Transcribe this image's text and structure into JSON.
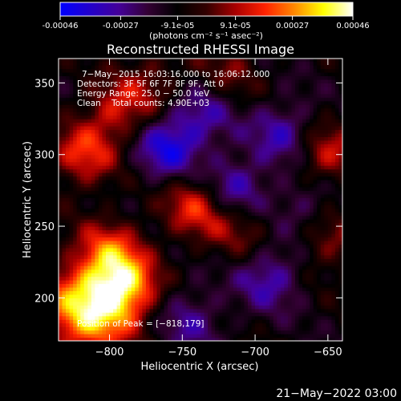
{
  "colorbar": {
    "tick_labels": [
      "-0.00046",
      "-0.00027",
      "-9.1e-05",
      "9.1e-05",
      "0.00027",
      "0.00046"
    ],
    "tick_values": [
      -0.00046,
      -0.00027,
      -9.1e-05,
      9.1e-05,
      0.00027,
      0.00046
    ],
    "range": [
      -0.00046,
      0.00046
    ],
    "units_label": "(photons cm⁻² s⁻¹ asec⁻²)",
    "colormap": [
      "#0000ff",
      "#2200cc",
      "#440099",
      "#330033",
      "#000000",
      "#330000",
      "#aa0000",
      "#ff2200",
      "#ff8800",
      "#ffff00",
      "#ffffff"
    ]
  },
  "chart_data": {
    "type": "heatmap",
    "title": "Reconstructed RHESSI Image",
    "xlabel": "Heliocentric X (arcsec)",
    "ylabel": "Heliocentric Y (arcsec)",
    "xlim": [
      -835,
      -640
    ],
    "ylim": [
      170,
      367
    ],
    "x_ticks": [
      -800,
      -750,
      -700,
      -650
    ],
    "x_tick_labels": [
      "−800",
      "−750",
      "−700",
      "−650"
    ],
    "y_ticks": [
      200,
      250,
      300,
      350
    ],
    "y_tick_labels": [
      "200",
      "250",
      "300",
      "350"
    ],
    "annotations": [
      "7−May−2015 16:03:16.000 to 16:06:12.000",
      "Detectors: 3F 5F 6F 7F 8F 9F, Att 0",
      "Energy Range: 25.0 − 50.0 keV",
      "Clean    Total counts: 4.90E+03"
    ],
    "peak_label": "Position of Peak = [−818,179]",
    "peak": [
      -818,
      179
    ],
    "bright_regions": [
      {
        "x": -815,
        "y": 192,
        "intensity": 1.0
      },
      {
        "x": -790,
        "y": 208,
        "intensity": 0.75
      },
      {
        "x": -800,
        "y": 232,
        "intensity": 0.55
      },
      {
        "x": -818,
        "y": 300,
        "intensity": 0.55
      },
      {
        "x": -795,
        "y": 330,
        "intensity": 0.45
      },
      {
        "x": -740,
        "y": 265,
        "intensity": 0.6
      },
      {
        "x": -710,
        "y": 250,
        "intensity": 0.35
      },
      {
        "x": -652,
        "y": 300,
        "intensity": 0.5
      },
      {
        "x": -650,
        "y": 240,
        "intensity": 0.35
      },
      {
        "x": -770,
        "y": 350,
        "intensity": 0.3
      },
      {
        "x": -720,
        "y": 355,
        "intensity": 0.3
      }
    ],
    "dark_regions": [
      {
        "x": -760,
        "y": 305,
        "intensity": -0.6
      },
      {
        "x": -715,
        "y": 275,
        "intensity": -0.55
      },
      {
        "x": -680,
        "y": 315,
        "intensity": -0.45
      },
      {
        "x": -735,
        "y": 330,
        "intensity": -0.4
      },
      {
        "x": -690,
        "y": 215,
        "intensity": -0.45
      },
      {
        "x": -745,
        "y": 185,
        "intensity": -0.35
      },
      {
        "x": -665,
        "y": 265,
        "intensity": -0.3
      }
    ]
  },
  "footer": {
    "timestamp": "21−May−2022 03:00"
  }
}
